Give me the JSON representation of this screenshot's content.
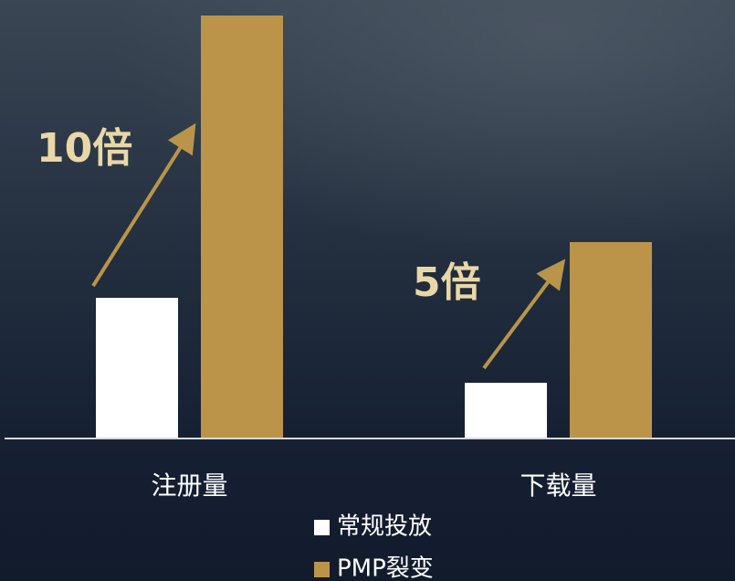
{
  "chart_data": {
    "type": "bar",
    "categories": [
      "注册量",
      "下载量"
    ],
    "series": [
      {
        "name": "常规投放",
        "color": "#ffffff",
        "values": [
          154,
          61
        ]
      },
      {
        "name": "PMP裂变",
        "color": "#bb944a",
        "values": [
          463,
          215
        ]
      }
    ],
    "ylim": [
      0,
      480
    ],
    "annotations": [
      "10倍",
      "5倍"
    ],
    "legend": "bottom"
  }
}
